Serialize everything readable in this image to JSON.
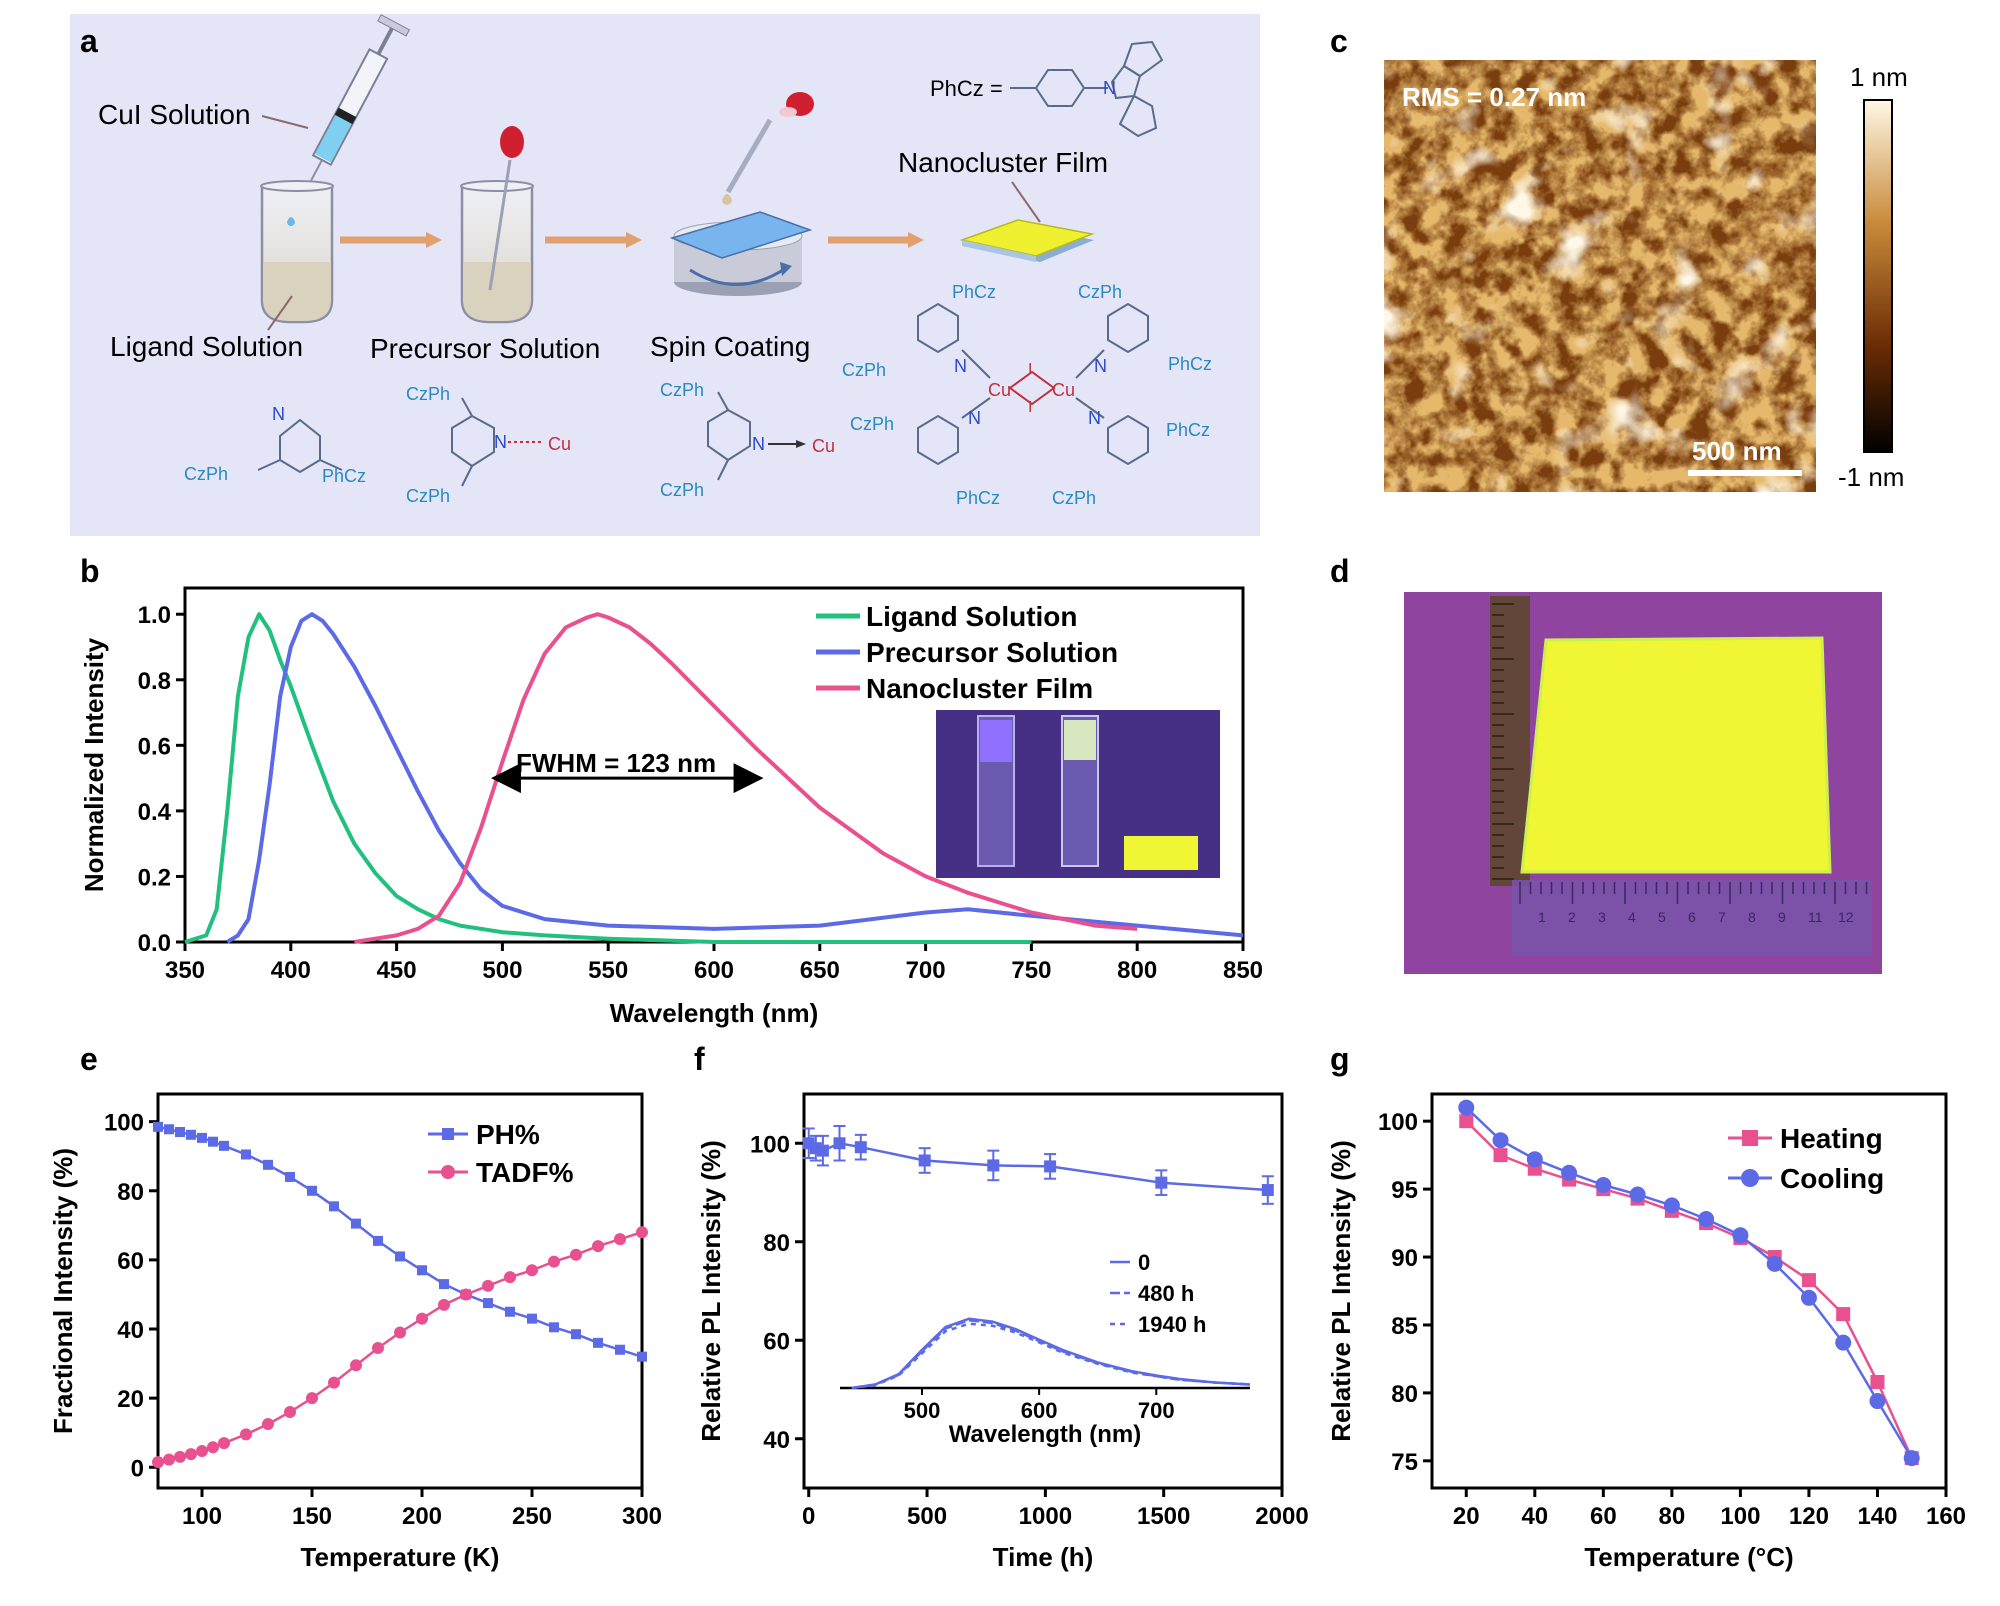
{
  "panels": {
    "a": {
      "letter": "a",
      "labels": {
        "cui": "CuI Solution",
        "ligand": "Ligand Solution",
        "precursor": "Precursor Solution",
        "spin": "Spin Coating",
        "film": "Nanocluster Film",
        "phcz_def": "PhCz ="
      },
      "chem": {
        "czph": "CzPh",
        "phcz": "PhCz",
        "n": "N",
        "cu": "Cu",
        "i": "I"
      }
    },
    "b": {
      "letter": "b",
      "fwhm": "FWHM = 123 nm",
      "legend": [
        "Ligand Solution",
        "Precursor Solution",
        "Nanocluster Film"
      ],
      "colors": [
        "#22c07f",
        "#5c6ae6",
        "#e8508f"
      ]
    },
    "c": {
      "letter": "c",
      "rms": "RMS = 0.27 nm",
      "scalebar": "500 nm",
      "cb_top": "1 nm",
      "cb_bottom": "-1 nm"
    },
    "d": {
      "letter": "d",
      "ruler_numbers": [
        "1",
        "2",
        "3",
        "4",
        "5",
        "6",
        "7",
        "8",
        "9",
        "11",
        "12"
      ]
    },
    "e": {
      "letter": "e",
      "legend": [
        "PH%",
        "TADF%"
      ],
      "colors": [
        "#5c6ae6",
        "#e8508f"
      ]
    },
    "f": {
      "letter": "f",
      "inset_legend": [
        "0",
        "480 h",
        "1940 h"
      ],
      "inset_xlabel": "Wavelength (nm)",
      "inset_xticks": [
        "500",
        "600",
        "700"
      ]
    },
    "g": {
      "letter": "g",
      "legend": [
        "Heating",
        "Cooling"
      ],
      "colors": [
        "#e8508f",
        "#5c6ae6"
      ]
    }
  },
  "chart_data": [
    {
      "id": "b",
      "type": "line",
      "xlabel": "Wavelength (nm)",
      "ylabel": "Normalized Intensity",
      "xlim": [
        350,
        850
      ],
      "ylim": [
        0,
        1.08
      ],
      "xticks": [
        350,
        400,
        450,
        500,
        550,
        600,
        650,
        700,
        750,
        800,
        850
      ],
      "yticks": [
        0.0,
        0.2,
        0.4,
        0.6,
        0.8,
        1.0
      ],
      "ytick_labels": [
        "0.0",
        "0.2",
        "0.4",
        "0.6",
        "0.8",
        "1.0"
      ],
      "legend_position": "top-right",
      "series": [
        {
          "name": "Ligand Solution",
          "x": [
            350,
            360,
            365,
            370,
            375,
            380,
            385,
            390,
            395,
            400,
            410,
            420,
            430,
            440,
            450,
            460,
            470,
            480,
            500,
            520,
            550,
            600,
            650,
            700,
            750
          ],
          "y": [
            0,
            0.02,
            0.1,
            0.4,
            0.75,
            0.93,
            1.0,
            0.95,
            0.86,
            0.78,
            0.6,
            0.43,
            0.3,
            0.21,
            0.14,
            0.1,
            0.07,
            0.05,
            0.03,
            0.02,
            0.01,
            0.0,
            0.0,
            0.0,
            0.0
          ]
        },
        {
          "name": "Precursor Solution",
          "x": [
            370,
            375,
            380,
            385,
            390,
            395,
            400,
            405,
            410,
            415,
            420,
            430,
            440,
            450,
            460,
            470,
            480,
            490,
            500,
            520,
            550,
            600,
            650,
            700,
            720,
            750,
            800,
            850
          ],
          "y": [
            0,
            0.02,
            0.07,
            0.25,
            0.48,
            0.75,
            0.9,
            0.98,
            1.0,
            0.98,
            0.94,
            0.84,
            0.72,
            0.59,
            0.46,
            0.34,
            0.24,
            0.16,
            0.11,
            0.07,
            0.05,
            0.04,
            0.05,
            0.09,
            0.1,
            0.08,
            0.05,
            0.02
          ]
        },
        {
          "name": "Nanocluster Film",
          "x": [
            430,
            450,
            460,
            470,
            480,
            490,
            500,
            510,
            520,
            530,
            540,
            545,
            550,
            560,
            570,
            580,
            600,
            620,
            650,
            680,
            700,
            720,
            750,
            780,
            800
          ],
          "y": [
            0,
            0.02,
            0.04,
            0.08,
            0.18,
            0.35,
            0.55,
            0.74,
            0.88,
            0.96,
            0.99,
            1.0,
            0.99,
            0.96,
            0.91,
            0.85,
            0.72,
            0.59,
            0.41,
            0.27,
            0.2,
            0.15,
            0.09,
            0.05,
            0.04
          ]
        }
      ]
    },
    {
      "id": "e",
      "type": "line",
      "xlabel": "Temperature (K)",
      "ylabel": "Fractional Intensity (%)",
      "xlim": [
        80,
        300
      ],
      "ylim": [
        -6,
        108
      ],
      "xticks": [
        100,
        150,
        200,
        250,
        300
      ],
      "yticks": [
        0,
        20,
        40,
        60,
        80,
        100
      ],
      "legend_position": "top-right",
      "series": [
        {
          "name": "PH%",
          "x": [
            80,
            85,
            90,
            95,
            100,
            105,
            110,
            120,
            130,
            140,
            150,
            160,
            170,
            180,
            190,
            200,
            210,
            220,
            230,
            240,
            250,
            260,
            270,
            280,
            290,
            300
          ],
          "y": [
            98.5,
            97.8,
            97,
            96.2,
            95.3,
            94.2,
            93,
            90.5,
            87.5,
            84,
            80,
            75.5,
            70.5,
            65.5,
            61,
            57,
            53,
            50,
            47.5,
            45,
            43,
            40.5,
            38.5,
            36,
            34,
            32
          ]
        },
        {
          "name": "TADF%",
          "x": [
            80,
            85,
            90,
            95,
            100,
            105,
            110,
            120,
            130,
            140,
            150,
            160,
            170,
            180,
            190,
            200,
            210,
            220,
            230,
            240,
            250,
            260,
            270,
            280,
            290,
            300
          ],
          "y": [
            1.5,
            2.2,
            3,
            3.8,
            4.7,
            5.8,
            7,
            9.5,
            12.5,
            16,
            20,
            24.5,
            29.5,
            34.5,
            39,
            43,
            47,
            50,
            52.5,
            55,
            57,
            59.5,
            61.5,
            64,
            66,
            68
          ]
        }
      ]
    },
    {
      "id": "f",
      "type": "line",
      "xlabel": "Time (h)",
      "ylabel": "Relative PL Intensity (%)",
      "xlim": [
        -20,
        2000
      ],
      "ylim": [
        30,
        110
      ],
      "xticks": [
        0,
        500,
        1000,
        1500,
        2000
      ],
      "yticks": [
        40,
        60,
        80,
        100
      ],
      "series": [
        {
          "name": "Relative PL Intensity",
          "x": [
            0,
            30,
            60,
            130,
            220,
            490,
            780,
            1020,
            1490,
            1940
          ],
          "y": [
            100,
            99,
            98.5,
            100,
            99.2,
            96.5,
            95.5,
            95.3,
            92,
            90.5
          ],
          "err": [
            3,
            2.5,
            3,
            3.5,
            2.5,
            2.5,
            3,
            2.5,
            2.5,
            2.8
          ]
        }
      ],
      "inset": {
        "type": "line",
        "xlabel": "Wavelength (nm)",
        "xlim": [
          430,
          780
        ],
        "xticks": [
          500,
          600,
          700
        ],
        "series": [
          {
            "name": "0",
            "x": [
              440,
              460,
              480,
              500,
              520,
              540,
              560,
              580,
              600,
              620,
              650,
              680,
              700,
              720,
              750,
              780
            ],
            "y": [
              0.0,
              0.05,
              0.2,
              0.55,
              0.88,
              1.0,
              0.96,
              0.85,
              0.7,
              0.55,
              0.37,
              0.24,
              0.18,
              0.13,
              0.08,
              0.05
            ]
          },
          {
            "name": "480 h",
            "x": [
              440,
              460,
              480,
              500,
              520,
              540,
              560,
              580,
              600,
              620,
              650,
              680,
              700,
              720,
              750,
              780
            ],
            "y": [
              0.0,
              0.05,
              0.19,
              0.53,
              0.86,
              0.98,
              0.94,
              0.83,
              0.68,
              0.53,
              0.36,
              0.23,
              0.17,
              0.12,
              0.08,
              0.05
            ]
          },
          {
            "name": "1940 h",
            "x": [
              440,
              460,
              480,
              500,
              520,
              540,
              560,
              580,
              600,
              620,
              650,
              680,
              700,
              720,
              750,
              780
            ],
            "y": [
              0.0,
              0.04,
              0.18,
              0.5,
              0.82,
              0.93,
              0.9,
              0.8,
              0.66,
              0.51,
              0.35,
              0.22,
              0.17,
              0.12,
              0.08,
              0.05
            ]
          }
        ]
      }
    },
    {
      "id": "g",
      "type": "line",
      "xlabel": "Temperature (°C)",
      "ylabel": "Relative PL Intensity (%)",
      "xlim": [
        10,
        160
      ],
      "ylim": [
        73,
        102
      ],
      "xticks": [
        20,
        40,
        60,
        80,
        100,
        120,
        140,
        160
      ],
      "yticks": [
        75,
        80,
        85,
        90,
        95,
        100
      ],
      "legend_position": "top-right",
      "series": [
        {
          "name": "Heating",
          "x": [
            20,
            30,
            40,
            50,
            60,
            70,
            80,
            90,
            100,
            110,
            120,
            130,
            140,
            150
          ],
          "y": [
            100,
            97.5,
            96.5,
            95.7,
            95,
            94.3,
            93.4,
            92.5,
            91.4,
            90,
            88.3,
            85.8,
            80.8,
            75.2
          ]
        },
        {
          "name": "Cooling",
          "x": [
            20,
            30,
            40,
            50,
            60,
            70,
            80,
            90,
            100,
            110,
            120,
            130,
            140,
            150
          ],
          "y": [
            101,
            98.6,
            97.2,
            96.2,
            95.3,
            94.6,
            93.8,
            92.8,
            91.6,
            89.5,
            87,
            83.7,
            79.4,
            75.2
          ]
        }
      ]
    }
  ]
}
